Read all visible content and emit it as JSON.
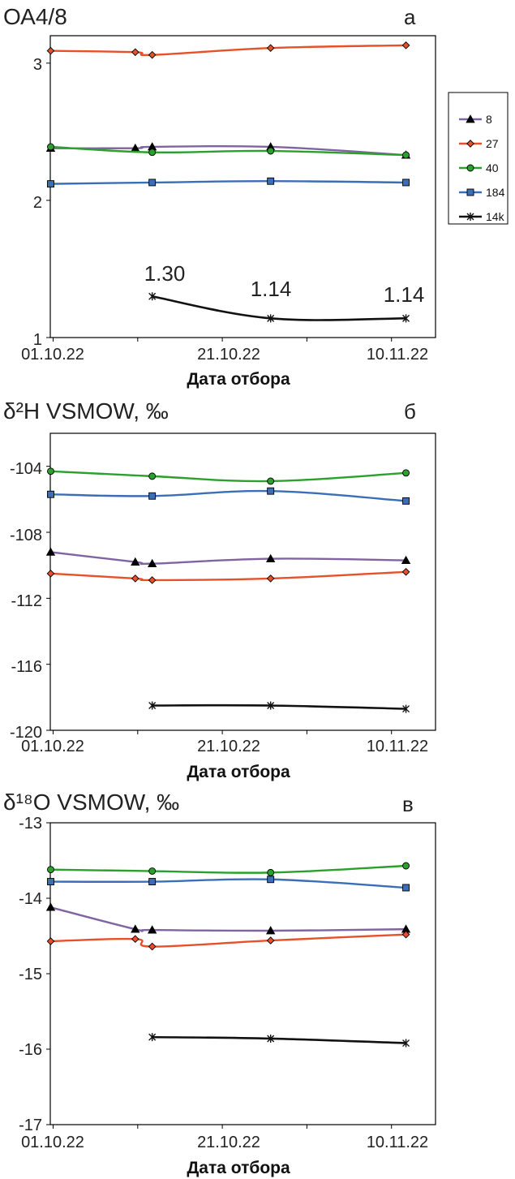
{
  "chart_data": [
    {
      "type": "line",
      "title": "ОА4/8",
      "panel_label": "а",
      "xlabel": "Дата отбора",
      "ylabel": "",
      "x_ticks": [
        "01.10.22",
        "21.10.22",
        "10.11.22"
      ],
      "ylim": [
        1,
        3.2
      ],
      "y_ticks": [
        "1",
        "2",
        "3"
      ],
      "grid": false,
      "legend_position": "right",
      "series": [
        {
          "name": "8",
          "color": "#8064a2",
          "marker": "triangle",
          "x": [
            "2022-10-01",
            "2022-10-11",
            "2022-10-13",
            "2022-10-27",
            "2022-11-12"
          ],
          "values": [
            2.38,
            2.38,
            2.39,
            2.39,
            2.33
          ]
        },
        {
          "name": "27",
          "color": "#e8502a",
          "marker": "diamond",
          "x": [
            "2022-10-01",
            "2022-10-11",
            "2022-10-13",
            "2022-10-27",
            "2022-11-12"
          ],
          "values": [
            3.09,
            3.08,
            3.06,
            3.11,
            3.13
          ]
        },
        {
          "name": "40",
          "color": "#2ca02c",
          "marker": "circle",
          "x": [
            "2022-10-01",
            "2022-10-13",
            "2022-10-27",
            "2022-11-12"
          ],
          "values": [
            2.39,
            2.35,
            2.36,
            2.33
          ]
        },
        {
          "name": "184",
          "color": "#3a6fb7",
          "marker": "square",
          "x": [
            "2022-10-01",
            "2022-10-13",
            "2022-10-27",
            "2022-11-12"
          ],
          "values": [
            2.12,
            2.13,
            2.14,
            2.13
          ]
        },
        {
          "name": "14k",
          "color": "#111111",
          "marker": "asterisk",
          "x": [
            "2022-10-13",
            "2022-10-27",
            "2022-11-12"
          ],
          "values": [
            1.3,
            1.14,
            1.14
          ],
          "data_labels": [
            "1.30",
            "1.14",
            "1.14"
          ]
        }
      ]
    },
    {
      "type": "line",
      "title": "δ²H VSMOW, ‰",
      "panel_label": "б",
      "xlabel": "Дата отбора",
      "ylabel": "",
      "x_ticks": [
        "01.10.22",
        "21.10.22",
        "10.11.22"
      ],
      "ylim": [
        -120,
        -102
      ],
      "y_ticks": [
        "-104",
        "-108",
        "-112",
        "-116",
        "-120"
      ],
      "grid": false,
      "series": [
        {
          "name": "8",
          "color": "#8064a2",
          "marker": "triangle",
          "x": [
            "2022-10-01",
            "2022-10-11",
            "2022-10-13",
            "2022-10-27",
            "2022-11-12"
          ],
          "values": [
            -109.2,
            -109.8,
            -109.9,
            -109.6,
            -109.7
          ]
        },
        {
          "name": "27",
          "color": "#e8502a",
          "marker": "diamond",
          "x": [
            "2022-10-01",
            "2022-10-11",
            "2022-10-13",
            "2022-10-27",
            "2022-11-12"
          ],
          "values": [
            -110.5,
            -110.8,
            -110.9,
            -110.8,
            -110.4
          ]
        },
        {
          "name": "40",
          "color": "#2ca02c",
          "marker": "circle",
          "x": [
            "2022-10-01",
            "2022-10-13",
            "2022-10-27",
            "2022-11-12"
          ],
          "values": [
            -104.3,
            -104.6,
            -104.9,
            -104.4
          ]
        },
        {
          "name": "184",
          "color": "#3a6fb7",
          "marker": "square",
          "x": [
            "2022-10-01",
            "2022-10-13",
            "2022-10-27",
            "2022-11-12"
          ],
          "values": [
            -105.7,
            -105.8,
            -105.5,
            -106.1
          ]
        },
        {
          "name": "14k",
          "color": "#111111",
          "marker": "asterisk",
          "x": [
            "2022-10-13",
            "2022-10-27",
            "2022-11-12"
          ],
          "values": [
            -118.5,
            -118.5,
            -118.7
          ]
        }
      ]
    },
    {
      "type": "line",
      "title": "δ¹⁸O VSMOW, ‰",
      "panel_label": "в",
      "xlabel": "Дата отбора",
      "ylabel": "",
      "x_ticks": [
        "01.10.22",
        "21.10.22",
        "10.11.22"
      ],
      "ylim": [
        -17,
        -13
      ],
      "y_ticks": [
        "-13",
        "-14",
        "-15",
        "-16",
        "-17"
      ],
      "grid": false,
      "series": [
        {
          "name": "8",
          "color": "#8064a2",
          "marker": "triangle",
          "x": [
            "2022-10-01",
            "2022-10-11",
            "2022-10-13",
            "2022-10-27",
            "2022-11-12"
          ],
          "values": [
            -14.12,
            -14.41,
            -14.42,
            -14.43,
            -14.41
          ]
        },
        {
          "name": "27",
          "color": "#e8502a",
          "marker": "diamond",
          "x": [
            "2022-10-01",
            "2022-10-11",
            "2022-10-13",
            "2022-10-27",
            "2022-11-12"
          ],
          "values": [
            -14.57,
            -14.54,
            -14.64,
            -14.56,
            -14.48
          ]
        },
        {
          "name": "40",
          "color": "#2ca02c",
          "marker": "circle",
          "x": [
            "2022-10-01",
            "2022-10-13",
            "2022-10-27",
            "2022-11-12"
          ],
          "values": [
            -13.62,
            -13.64,
            -13.66,
            -13.57
          ]
        },
        {
          "name": "184",
          "color": "#3a6fb7",
          "marker": "square",
          "x": [
            "2022-10-01",
            "2022-10-13",
            "2022-10-27",
            "2022-11-12"
          ],
          "values": [
            -13.78,
            -13.78,
            -13.75,
            -13.86
          ]
        },
        {
          "name": "14k",
          "color": "#111111",
          "marker": "asterisk",
          "x": [
            "2022-10-13",
            "2022-10-27",
            "2022-11-12"
          ],
          "values": [
            -15.84,
            -15.86,
            -15.92
          ]
        }
      ]
    }
  ]
}
